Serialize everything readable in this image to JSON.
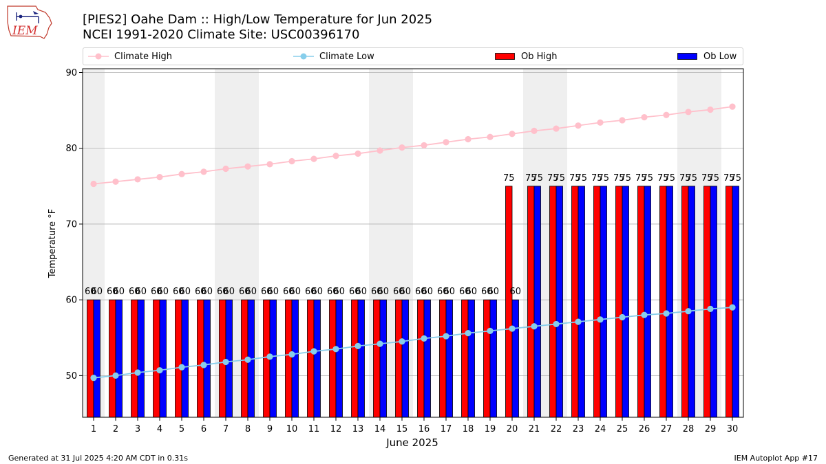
{
  "header": {
    "logo_text": "IEM",
    "title_line1": "[PIES2] Oahe Dam :: High/Low Temperature for Jun 2025",
    "title_line2": "NCEI 1991-2020 Climate Site: USC00396170"
  },
  "footer": {
    "generated": "Generated at 31 Jul 2025 4:20 AM CDT in 0.31s",
    "app": "IEM Autoplot App #17"
  },
  "colors": {
    "climate_high": "#ffc0cb",
    "climate_low": "#87ceeb",
    "ob_high": "#ff0000",
    "ob_low": "#0000ff",
    "weekend_shade": "#efefef",
    "grid": "#b0b0b0"
  },
  "chart_data": {
    "type": "bar",
    "title": "[PIES2] Oahe Dam :: High/Low Temperature for Jun 2025",
    "subtitle": "NCEI 1991-2020 Climate Site: USC00396170",
    "xlabel": "June 2025",
    "ylabel": "Temperature °F",
    "ylim": [
      44.5,
      90.5
    ],
    "yticks": [
      50,
      60,
      70,
      80,
      90
    ],
    "grid": true,
    "legend_position": "top",
    "categories": [
      "1",
      "2",
      "3",
      "4",
      "5",
      "6",
      "7",
      "8",
      "9",
      "10",
      "11",
      "12",
      "13",
      "14",
      "15",
      "16",
      "17",
      "18",
      "19",
      "20",
      "21",
      "22",
      "23",
      "24",
      "25",
      "26",
      "27",
      "28",
      "29",
      "30"
    ],
    "weekend_days": [
      1,
      7,
      8,
      14,
      15,
      21,
      22,
      28,
      29
    ],
    "series": [
      {
        "name": "Climate High",
        "type": "line",
        "values": [
          75.3,
          75.6,
          75.9,
          76.2,
          76.6,
          76.9,
          77.3,
          77.6,
          77.9,
          78.3,
          78.6,
          79.0,
          79.3,
          79.7,
          80.1,
          80.4,
          80.8,
          81.2,
          81.5,
          81.9,
          82.3,
          82.6,
          83.0,
          83.4,
          83.7,
          84.1,
          84.4,
          84.8,
          85.1,
          85.5
        ]
      },
      {
        "name": "Climate Low",
        "type": "line",
        "values": [
          49.7,
          50.0,
          50.4,
          50.7,
          51.1,
          51.4,
          51.8,
          52.1,
          52.5,
          52.8,
          53.2,
          53.5,
          53.9,
          54.2,
          54.5,
          54.9,
          55.2,
          55.6,
          55.9,
          56.2,
          56.5,
          56.8,
          57.1,
          57.4,
          57.7,
          58.0,
          58.2,
          58.5,
          58.8,
          59.0
        ]
      },
      {
        "name": "Ob High",
        "type": "bar",
        "values": [
          60,
          60,
          60,
          60,
          60,
          60,
          60,
          60,
          60,
          60,
          60,
          60,
          60,
          60,
          60,
          60,
          60,
          60,
          60,
          75,
          75,
          75,
          75,
          75,
          75,
          75,
          75,
          75,
          75,
          75
        ]
      },
      {
        "name": "Ob Low",
        "type": "bar",
        "values": [
          60,
          60,
          60,
          60,
          60,
          60,
          60,
          60,
          60,
          60,
          60,
          60,
          60,
          60,
          60,
          60,
          60,
          60,
          60,
          60,
          75,
          75,
          75,
          75,
          75,
          75,
          75,
          75,
          75,
          75
        ]
      }
    ]
  }
}
